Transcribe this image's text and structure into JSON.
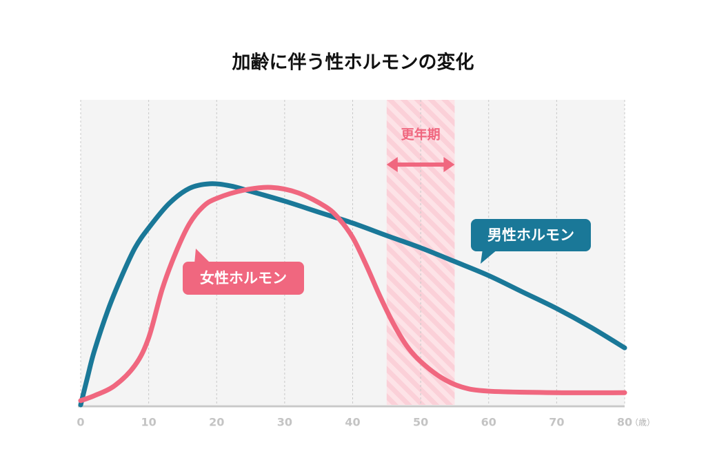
{
  "chart_data": {
    "type": "line",
    "title": "加齢に伴う性ホルモンの変化",
    "x_unit_label": "（歳）",
    "xlim": [
      0,
      80
    ],
    "xticks": [
      0,
      10,
      20,
      30,
      40,
      50,
      60,
      70,
      80
    ],
    "ylim": [
      0,
      100
    ],
    "grid": true,
    "annotations": [
      {
        "text": "更年期",
        "xrange": [
          45,
          55
        ]
      }
    ],
    "series": [
      {
        "name": "男性ホルモン",
        "color": "#1a7898",
        "x": [
          0,
          1,
          2,
          4,
          6,
          8,
          10,
          13,
          16,
          19,
          22,
          25,
          30,
          35,
          40,
          45,
          50,
          55,
          60,
          65,
          70,
          75,
          80
        ],
        "values": [
          0,
          9,
          17.6,
          31,
          42,
          51.5,
          58,
          66,
          71,
          72.5,
          71.8,
          70,
          66.8,
          63.2,
          59.6,
          55.5,
          51.5,
          47,
          42.4,
          37,
          31.6,
          25.5,
          18.7
        ]
      },
      {
        "name": "女性ホルモン",
        "color": "#f0677f",
        "x": [
          0,
          2,
          5,
          8,
          10,
          12,
          14,
          16,
          18,
          20,
          24,
          28,
          32,
          36,
          38,
          40,
          42,
          44,
          46,
          48,
          50,
          53,
          56,
          60,
          70,
          80
        ],
        "values": [
          1.4,
          3,
          6.3,
          13,
          22,
          38,
          50,
          59.4,
          65,
          67.7,
          70.4,
          71.3,
          69.5,
          65,
          61,
          54.9,
          45.8,
          35.7,
          26.6,
          19.2,
          14.2,
          9,
          5.9,
          4.5,
          4,
          4
        ]
      }
    ]
  }
}
